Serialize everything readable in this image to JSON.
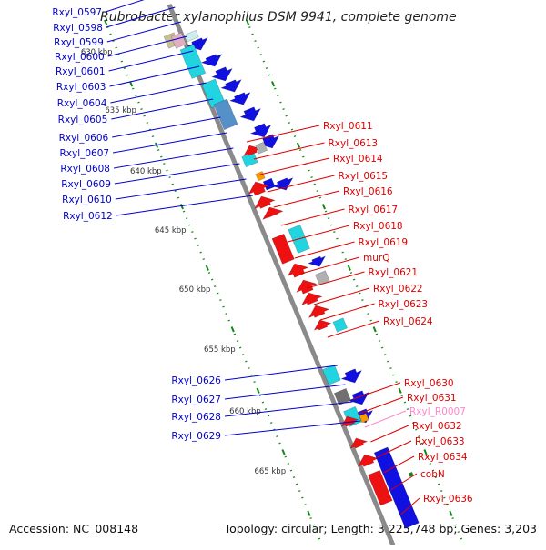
{
  "title": "Rubrobacter xylanophilus DSM 9941, complete genome",
  "accession": "Accession: NC_008148",
  "stats": "Topology: circular; Length: 3,225,748 bp; Genes: 3,203",
  "colors": {
    "forward": "#1010e0",
    "reverse": "#ee1111",
    "rna": "#ff88cc",
    "tick": "#118811",
    "left_label": "#0000cc",
    "right_label": "#dd0000",
    "cyan": "#22d4e0",
    "orange": "#ff9900",
    "gray": "#b0b0b0"
  },
  "scale_labels": [
    "630 kbp",
    "635 kbp",
    "640 kbp",
    "645 kbp",
    "650 kbp",
    "655 kbp",
    "660 kbp",
    "665 kbp"
  ],
  "left_genes": [
    "Rxyl_0597",
    "Rxyl_0598",
    "Rxyl_0599",
    "Rxyl_0600",
    "Rxyl_0601",
    "Rxyl_0603",
    "Rxyl_0604",
    "Rxyl_0605",
    "Rxyl_0606",
    "Rxyl_0607",
    "Rxyl_0608",
    "Rxyl_0609",
    "Rxyl_0610",
    "Rxyl_0612",
    "Rxyl_0626",
    "Rxyl_0627",
    "Rxyl_0628",
    "Rxyl_0629"
  ],
  "right_genes": [
    "Rxyl_0611",
    "Rxyl_0613",
    "Rxyl_0614",
    "Rxyl_0615",
    "Rxyl_0616",
    "Rxyl_0617",
    "Rxyl_0618",
    "Rxyl_0619",
    "murQ",
    "Rxyl_0621",
    "Rxyl_0622",
    "Rxyl_0623",
    "Rxyl_0624",
    "Rxyl_0630",
    "Rxyl_0631",
    "Rxyl_R0007",
    "Rxyl_0632",
    "Rxyl_0633",
    "Rxyl_0634",
    "cobN",
    "Rxyl_0636"
  ],
  "rna_genes": [
    "Rxyl_R0007"
  ]
}
